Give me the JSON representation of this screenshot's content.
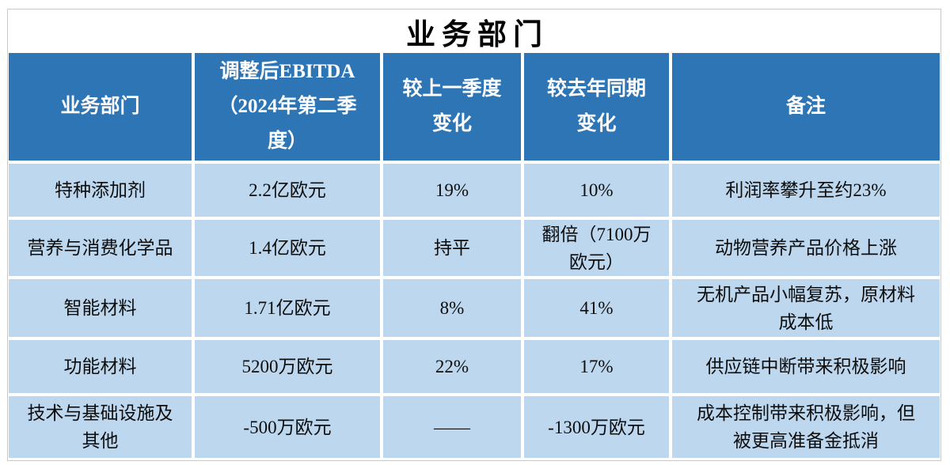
{
  "title": "业务部门",
  "colors": {
    "header_bg": "#2E75B6",
    "row_bg": "#BDD7EE",
    "header_text": "#FFFFFF",
    "body_text": "#0D0D0D",
    "figure_border": "#C9C9C9"
  },
  "table": {
    "headers": [
      "业务部门",
      "调整后EBITDA\n（2024年第二季\n度）",
      "较上一季度\n变化",
      "较去年同期\n变化",
      "备注"
    ],
    "rows": [
      [
        "特种添加剂",
        "2.2亿欧元",
        "19%",
        "10%",
        "利润率攀升至约23%"
      ],
      [
        "营养与消费化学品",
        "1.4亿欧元",
        "持平",
        "翻倍（7100万\n欧元）",
        "动物营养产品价格上涨"
      ],
      [
        "智能材料",
        "1.71亿欧元",
        "8%",
        "41%",
        "无机产品小幅复苏，原材料\n成本低"
      ],
      [
        "功能材料",
        "5200万欧元",
        "22%",
        "17%",
        "供应链中断带来积极影响"
      ],
      [
        "技术与基础设施及\n其他",
        "-500万欧元",
        "——",
        "-1300万欧元",
        "成本控制带来积极影响，但\n被更高准备金抵消"
      ]
    ]
  }
}
